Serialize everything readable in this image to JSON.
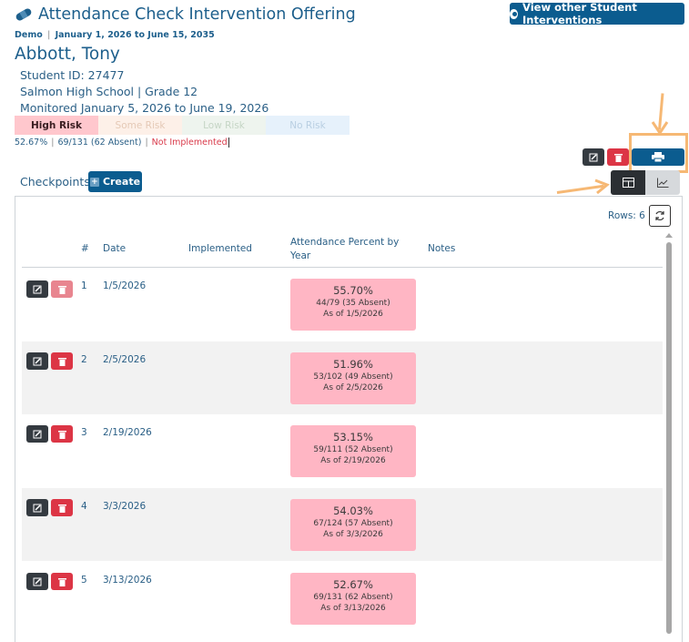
{
  "header": {
    "title": "Attendance Check Intervention Offering",
    "view_button": "View other Student Interventions",
    "subtitle_left": "Demo",
    "subtitle_right": "January 1, 2026 to June 15, 2035"
  },
  "student": {
    "name": "Abbott, Tony",
    "id_line": "Student ID: 27477",
    "school_line": "Salmon High School | Grade 12",
    "monitored_line": "Monitored January 5, 2026 to June 19, 2026"
  },
  "risk": {
    "high": "High Risk",
    "some": "Some Risk",
    "low": "Low Risk",
    "none": "No Risk",
    "colors": {
      "high": "#ffc7cd",
      "some": "#fdf0e8",
      "low": "#eef4ee",
      "none": "#e6f1fb"
    }
  },
  "stats": {
    "percent": "52.67%",
    "counts": "69/131 (62 Absent)",
    "status": "Not Implemented"
  },
  "checkpoints": {
    "label": "Checkpoints",
    "create_label": "Create",
    "rows_label": "Rows: 6"
  },
  "table": {
    "headers": {
      "num": "#",
      "date": "Date",
      "implemented": "Implemented",
      "att_line1": "Attendance Percent by",
      "att_line2": "Year",
      "notes": "Notes"
    },
    "rows": [
      {
        "num": "1",
        "date": "1/5/2026",
        "pct": "55.70%",
        "counts": "44/79 (35 Absent)",
        "asof": "As of 1/5/2026"
      },
      {
        "num": "2",
        "date": "2/5/2026",
        "pct": "51.96%",
        "counts": "53/102 (49 Absent)",
        "asof": "As of 2/5/2026"
      },
      {
        "num": "3",
        "date": "2/19/2026",
        "pct": "53.15%",
        "counts": "59/111 (52 Absent)",
        "asof": "As of 2/19/2026"
      },
      {
        "num": "4",
        "date": "3/3/2026",
        "pct": "54.03%",
        "counts": "67/124 (57 Absent)",
        "asof": "As of 3/3/2026"
      },
      {
        "num": "5",
        "date": "3/13/2026",
        "pct": "52.67%",
        "counts": "69/131 (62 Absent)",
        "asof": "As of 3/13/2026"
      }
    ]
  }
}
